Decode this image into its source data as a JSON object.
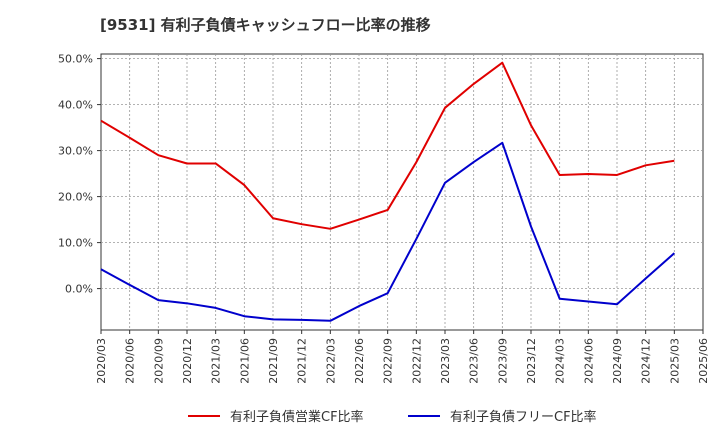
{
  "chart_data": {
    "type": "line",
    "title": "[9531]  有利子負債キャッシュフロー比率の推移",
    "xlabel": "",
    "ylabel": "",
    "x_ticks": [
      "2020/03",
      "2020/06",
      "2020/09",
      "2020/12",
      "2021/03",
      "2021/06",
      "2021/09",
      "2021/12",
      "2022/03",
      "2022/06",
      "2022/09",
      "2022/12",
      "2023/03",
      "2023/06",
      "2023/09",
      "2023/12",
      "2024/03",
      "2024/06",
      "2024/09",
      "2024/12",
      "2025/03",
      "2025/06"
    ],
    "y_ticks": [
      "0.0%",
      "10.0%",
      "20.0%",
      "30.0%",
      "40.0%",
      "50.0%"
    ],
    "ylim": [
      -9,
      51
    ],
    "grid": true,
    "legend_position": "bottom",
    "series": [
      {
        "name": "有利子負債営業CF比率",
        "color": "#e00000",
        "values": [
          36.5,
          32.8,
          29.0,
          27.2,
          27.2,
          22.5,
          15.3,
          14.0,
          13.0,
          15.0,
          17.1,
          27.5,
          39.3,
          44.5,
          49.1,
          35.5,
          24.7,
          24.9,
          24.7,
          26.8,
          27.8,
          null
        ]
      },
      {
        "name": "有利子負債フリーCF比率",
        "color": "#0000cc",
        "values": [
          4.2,
          0.8,
          -2.5,
          -3.2,
          -4.2,
          -6.0,
          -6.7,
          -6.8,
          -7.0,
          -3.8,
          -1.0,
          10.8,
          23.0,
          27.5,
          31.7,
          13.5,
          -2.2,
          -2.8,
          -3.4,
          2.2,
          7.7,
          null
        ]
      }
    ]
  }
}
